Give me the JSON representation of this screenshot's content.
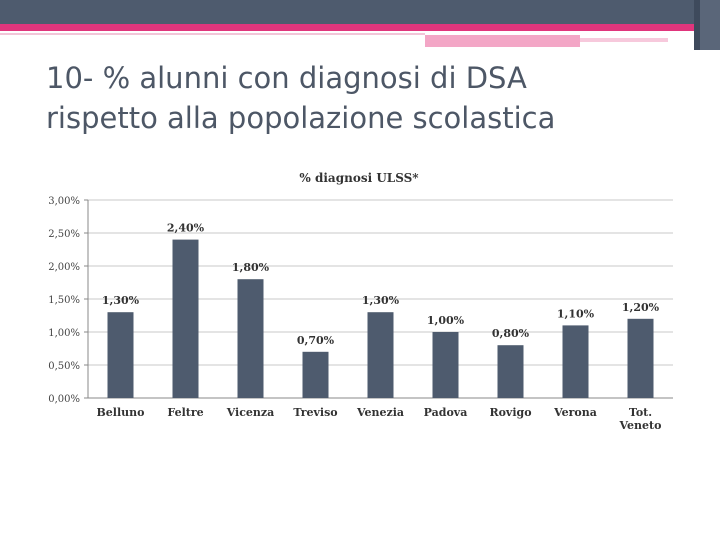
{
  "slide": {
    "title_line1": "10- % alunni con diagnosi di DSA",
    "title_line2": "rispetto alla popolazione scolastica"
  },
  "colors": {
    "header_band": "#4e5b6e",
    "accent_pink": "#e0357c",
    "bar": "#4e5b6e",
    "title_text": "#4d5766"
  },
  "chart_data": {
    "type": "bar",
    "title": "% diagnosi ULSS*",
    "categories": [
      "Belluno",
      "Feltre",
      "Vicenza",
      "Treviso",
      "Venezia",
      "Padova",
      "Rovigo",
      "Verona",
      "Tot. Veneto"
    ],
    "values": [
      1.3,
      2.4,
      1.8,
      0.7,
      1.3,
      1.0,
      0.8,
      1.1,
      1.2
    ],
    "data_labels": [
      "1,30%",
      "2,40%",
      "1,80%",
      "0,70%",
      "1,30%",
      "1,00%",
      "0,80%",
      "1,10%",
      "1,20%"
    ],
    "y_ticks": [
      0,
      0.5,
      1.0,
      1.5,
      2.0,
      2.5,
      3.0
    ],
    "y_tick_labels": [
      "0,00%",
      "0,50%",
      "1,00%",
      "1,50%",
      "2,00%",
      "2,50%",
      "3,00%"
    ],
    "ylim": [
      0,
      3.0
    ],
    "grid": true,
    "legend": "none",
    "xlabel": "",
    "ylabel": ""
  }
}
